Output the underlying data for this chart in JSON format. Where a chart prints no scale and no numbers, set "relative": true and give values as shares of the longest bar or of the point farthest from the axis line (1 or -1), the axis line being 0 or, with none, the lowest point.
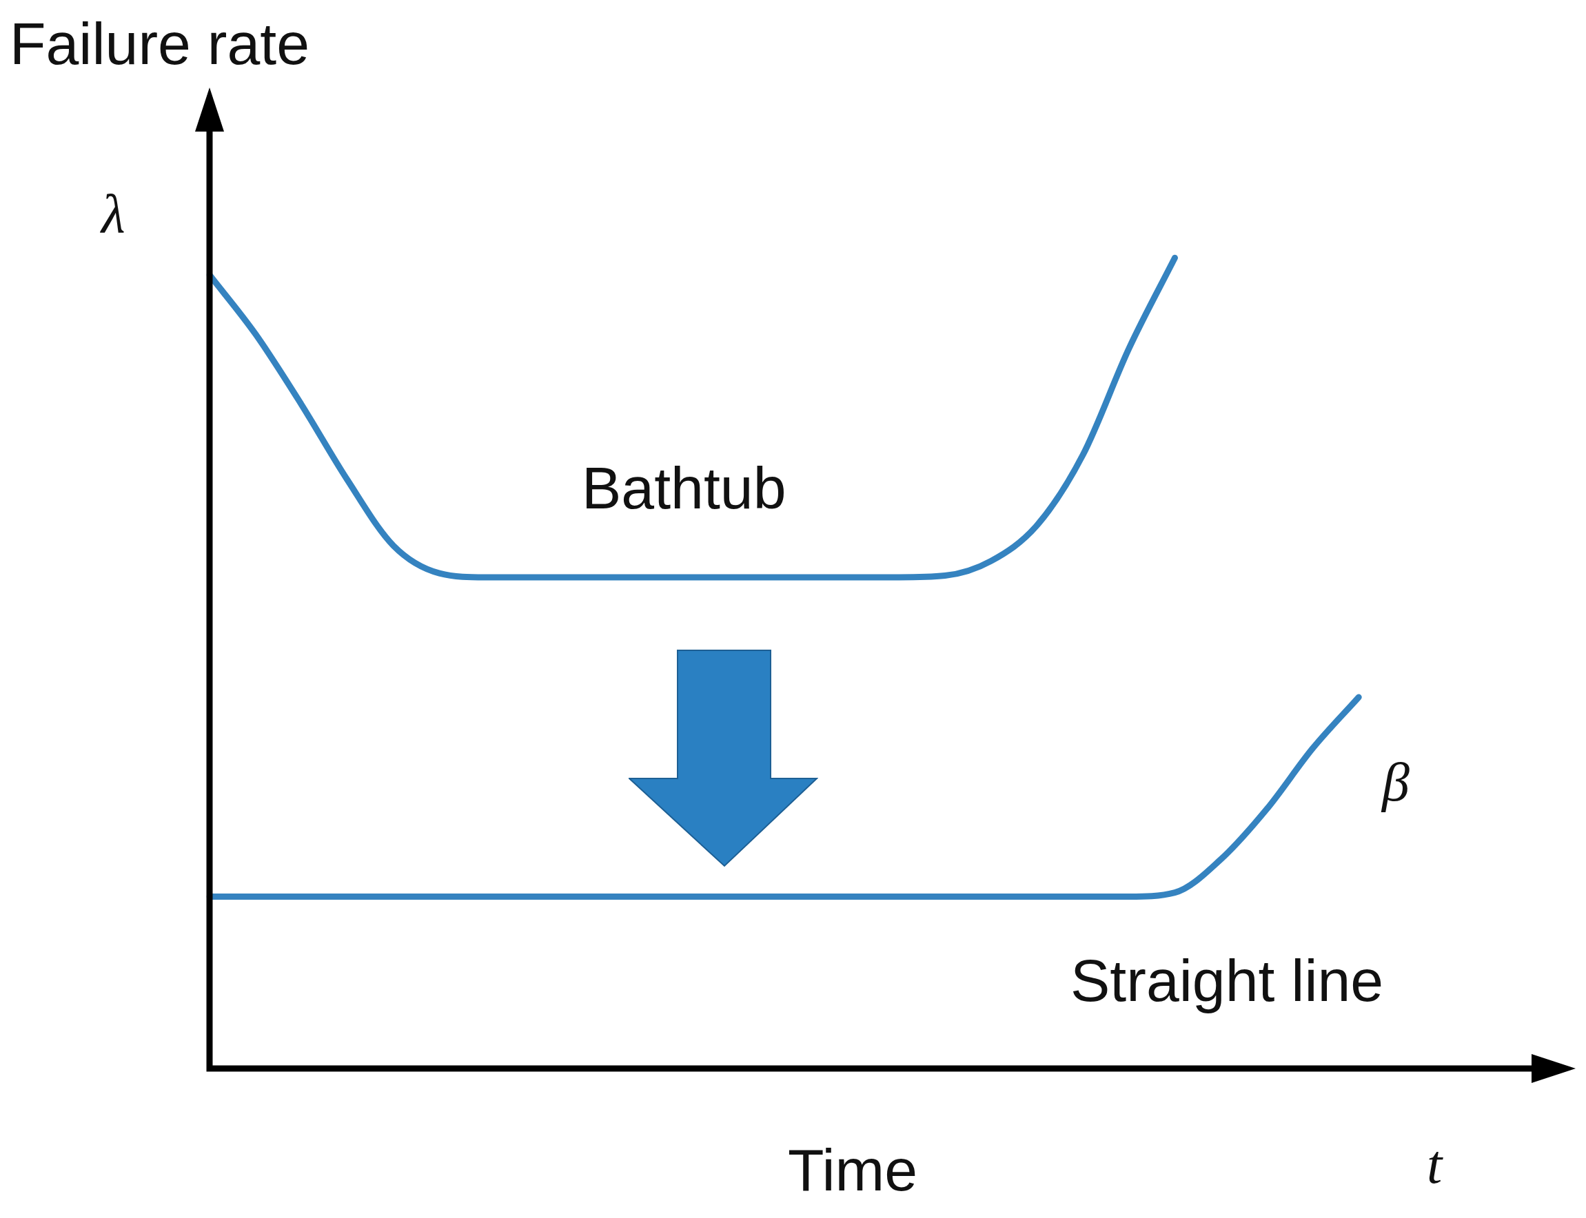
{
  "chart_data": {
    "type": "line",
    "relative": true,
    "ylabel": "Failure rate",
    "xlabel": "Time",
    "legend": false,
    "marker": "none",
    "line_style": "solid",
    "categories": [
      null,
      null,
      null,
      null,
      null,
      null,
      null,
      null,
      null,
      null,
      null,
      null,
      null,
      null,
      null,
      null,
      null,
      null,
      null,
      null,
      null,
      null,
      null,
      null,
      null,
      null,
      null,
      null,
      null,
      null
    ],
    "series": [
      {
        "name": "Bathtub",
        "color": "#3583c0",
        "values": [
          0.979,
          0.906,
          0.819,
          0.726,
          0.645,
          0.611,
          0.606,
          0.606,
          0.606,
          0.606,
          0.606,
          0.606,
          0.606,
          0.606,
          0.606,
          0.606,
          0.608,
          0.626,
          0.67,
          0.757,
          0.888,
          1.0,
          null,
          null,
          null,
          null,
          null,
          null,
          null,
          null
        ]
      },
      {
        "name": "Straight line",
        "color": "#3583c0",
        "values": [
          0.212,
          0.212,
          0.212,
          0.212,
          0.212,
          0.212,
          0.212,
          0.212,
          0.212,
          0.212,
          0.212,
          0.212,
          0.212,
          0.212,
          0.212,
          0.212,
          0.212,
          0.212,
          0.212,
          0.212,
          0.212,
          0.217,
          0.258,
          0.32,
          0.395,
          0.458,
          null,
          null,
          null,
          null
        ]
      }
    ],
    "annotations": [
      "λ",
      "β",
      "t"
    ]
  }
}
